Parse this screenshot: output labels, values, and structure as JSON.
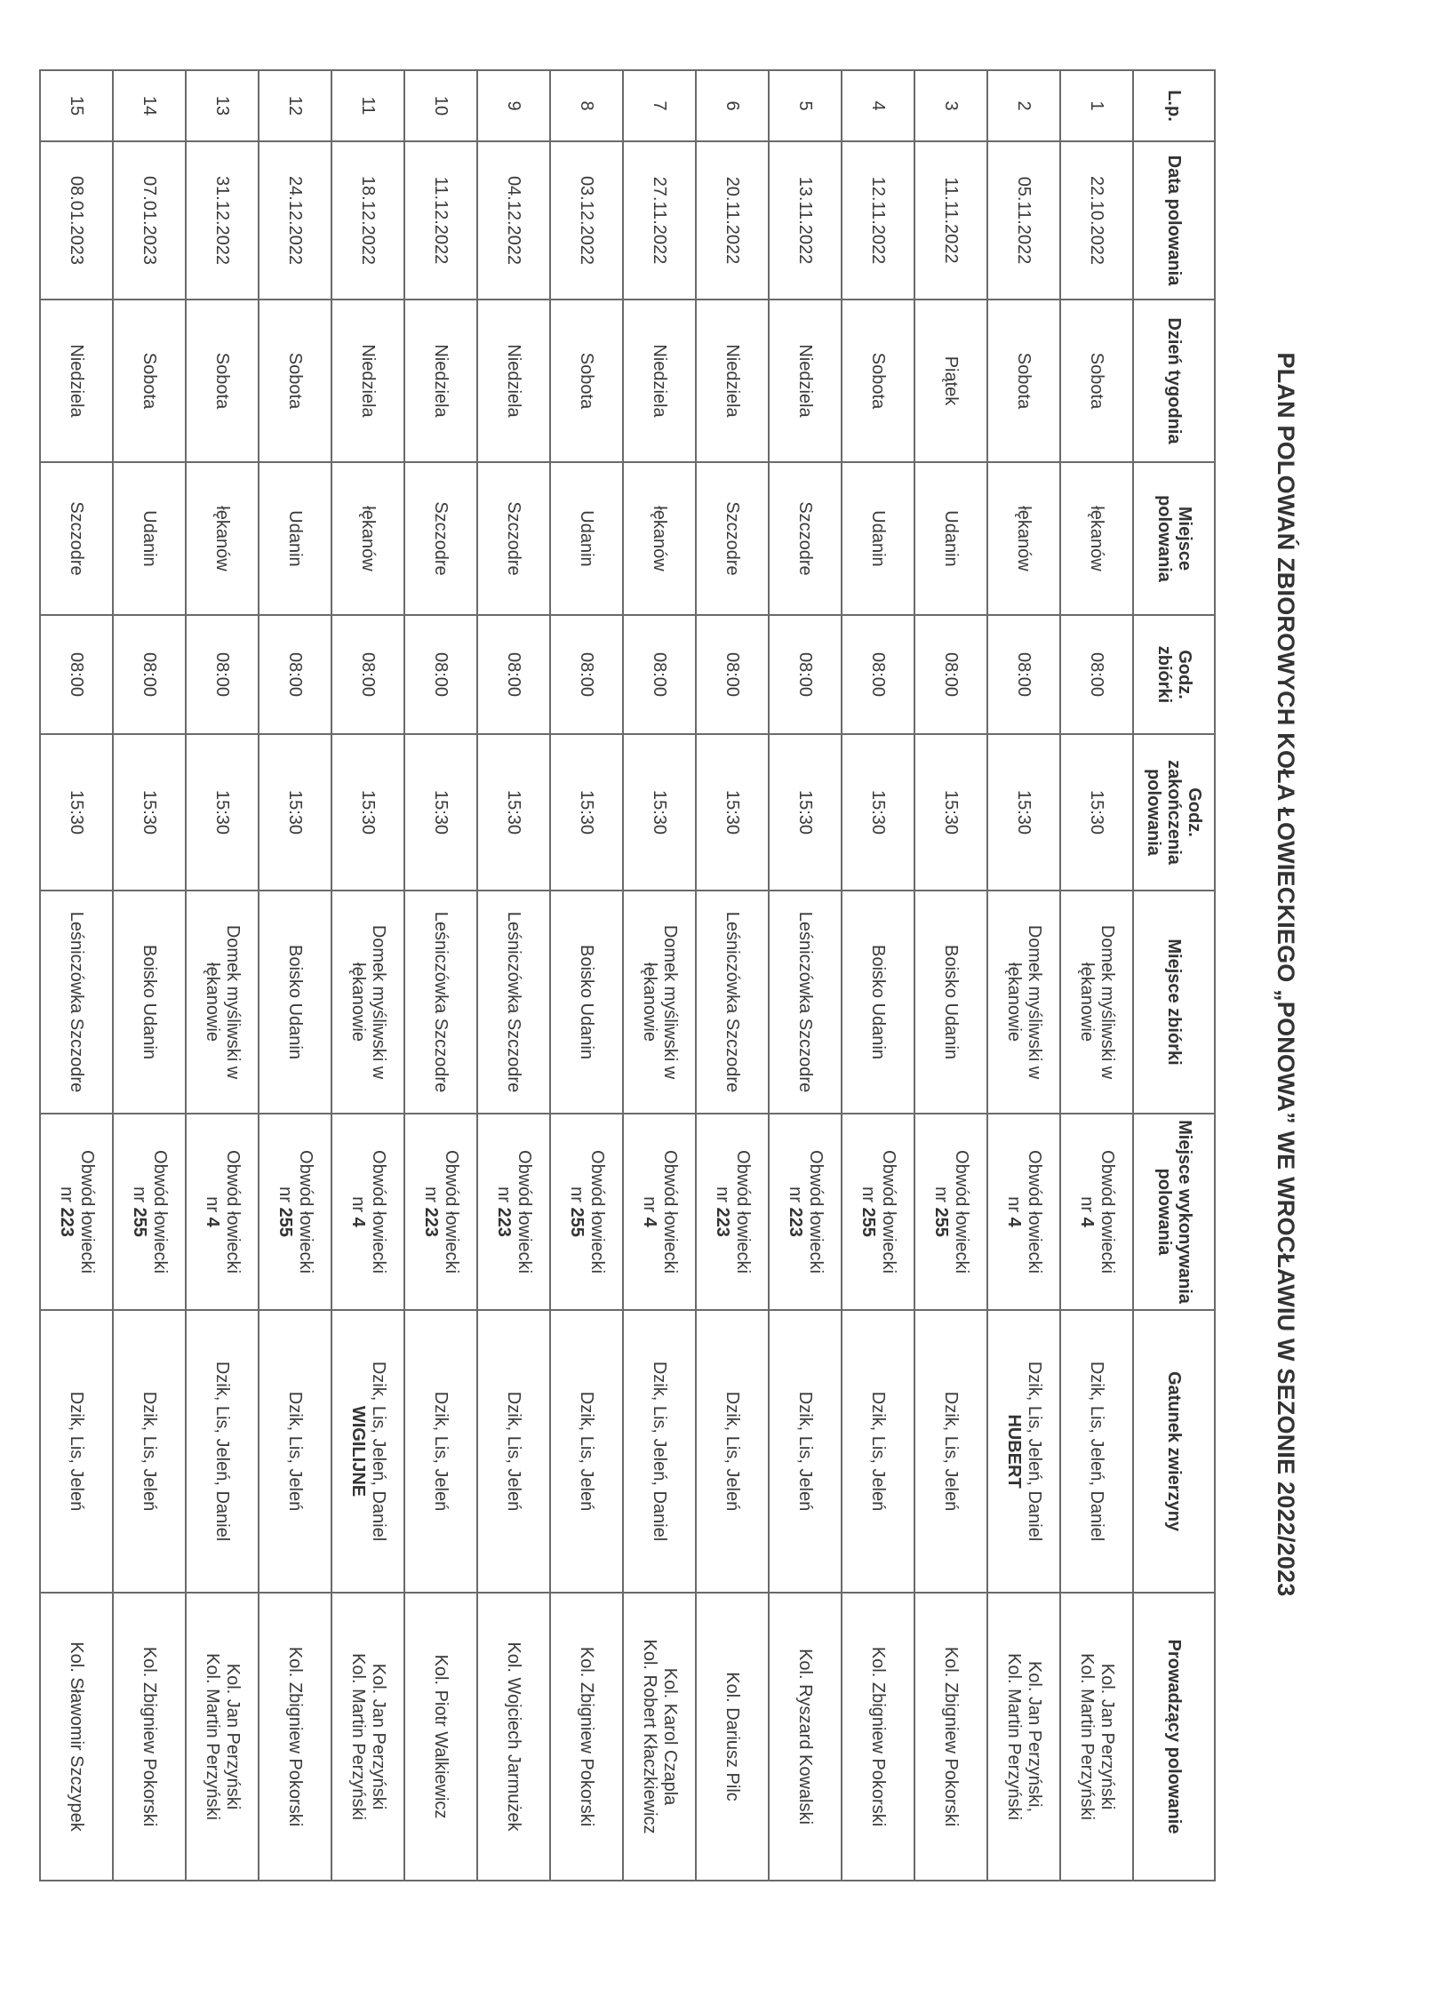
{
  "title": "PLAN POLOWAŃ ZBIOROWYCH KOŁA ŁOWIECKIEGO „PONOWA” WE WROCŁAWIU W SEZONIE 2022/2023",
  "headers": [
    "L.p.",
    "Data polowania",
    "Dzień tygodnia",
    "Miejsce polowania",
    "Godz. zbiórki",
    "Godz. zakończenia polowania",
    "Miejsce zbiórki",
    "Miejsce wykonywania polowania",
    "Gatunek zwierzyny",
    "Prowadzący polowanie"
  ],
  "rows": [
    {
      "lp": "1",
      "date": "22.10.2022",
      "day": "Sobota",
      "place": "łękanów",
      "start": "08:00",
      "end": "15:30",
      "meet": "Domek myśliwski w łękanowie",
      "area": "Obwód łowiecki",
      "nr_prefix": "nr",
      "nr": "4",
      "species": "Dzik, Lis, Jeleń, Daniel",
      "note": "",
      "leaders": [
        "Kol. Jan Perzyński",
        "Kol. Martin Perzyński"
      ]
    },
    {
      "lp": "2",
      "date": "05.11.2022",
      "day": "Sobota",
      "place": "łękanów",
      "start": "08:00",
      "end": "15:30",
      "meet": "Domek myśliwski w łękanowie",
      "area": "Obwód łowiecki",
      "nr_prefix": "nr",
      "nr": "4",
      "species": "Dzik, Lis, Jeleń, Daniel",
      "note": "HUBERT",
      "leaders": [
        "Kol. Jan Perzyński,",
        "Kol. Martin Perzyński"
      ]
    },
    {
      "lp": "3",
      "date": "11.11.2022",
      "day": "Piątek",
      "place": "Udanin",
      "start": "08:00",
      "end": "15:30",
      "meet": "Boisko Udanin",
      "area": "Obwód łowiecki",
      "nr_prefix": "nr",
      "nr": "255",
      "species": "Dzik, Lis, Jeleń",
      "note": "",
      "leaders": [
        "Kol. Zbigniew Pokorski"
      ]
    },
    {
      "lp": "4",
      "date": "12.11.2022",
      "day": "Sobota",
      "place": "Udanin",
      "start": "08:00",
      "end": "15:30",
      "meet": "Boisko Udanin",
      "area": "Obwód łowiecki",
      "nr_prefix": "nr",
      "nr": "255",
      "species": "Dzik, Lis, Jeleń",
      "note": "",
      "leaders": [
        "Kol. Zbigniew Pokorski"
      ]
    },
    {
      "lp": "5",
      "date": "13.11.2022",
      "day": "Niedziela",
      "place": "Szczodre",
      "start": "08:00",
      "end": "15:30",
      "meet": "Leśniczówka Szczodre",
      "area": "Obwód łowiecki",
      "nr_prefix": "nr",
      "nr": "223",
      "species": "Dzik, Lis, Jeleń",
      "note": "",
      "leaders": [
        "Kol. Ryszard Kowalski"
      ]
    },
    {
      "lp": "6",
      "date": "20.11.2022",
      "day": "Niedziela",
      "place": "Szczodre",
      "start": "08:00",
      "end": "15:30",
      "meet": "Leśniczówka Szczodre",
      "area": "Obwód łowiecki",
      "nr_prefix": "nr",
      "nr": "223",
      "species": "Dzik, Lis, Jeleń",
      "note": "",
      "leaders": [
        "Kol. Dariusz Pilc"
      ]
    },
    {
      "lp": "7",
      "date": "27.11.2022",
      "day": "Niedziela",
      "place": "łękanów",
      "start": "08:00",
      "end": "15:30",
      "meet": "Domek myśliwski w łękanowie",
      "area": "Obwód łowiecki",
      "nr_prefix": "nr",
      "nr": "4",
      "species": "Dzik, Lis, Jeleń, Daniel",
      "note": "",
      "leaders": [
        "Kol. Karol Czapla",
        "Kol. Robert Kłaczkiewicz"
      ]
    },
    {
      "lp": "8",
      "date": "03.12.2022",
      "day": "Sobota",
      "place": "Udanin",
      "start": "08:00",
      "end": "15:30",
      "meet": "Boisko Udanin",
      "area": "Obwód łowiecki",
      "nr_prefix": "nr",
      "nr": "255",
      "species": "Dzik, Lis, Jeleń",
      "note": "",
      "leaders": [
        "Kol. Zbigniew Pokorski"
      ]
    },
    {
      "lp": "9",
      "date": "04.12.2022",
      "day": "Niedziela",
      "place": "Szczodre",
      "start": "08:00",
      "end": "15:30",
      "meet": "Leśniczówka Szczodre",
      "area": "Obwód łowiecki",
      "nr_prefix": "nr",
      "nr": "223",
      "species": "Dzik, Lis, Jeleń",
      "note": "",
      "leaders": [
        "Kol. Wojciech Jarmużek"
      ]
    },
    {
      "lp": "10",
      "date": "11.12.2022",
      "day": "Niedziela",
      "place": "Szczodre",
      "start": "08:00",
      "end": "15:30",
      "meet": "Leśniczówka Szczodre",
      "area": "Obwód łowiecki",
      "nr_prefix": "nr",
      "nr": "223",
      "species": "Dzik, Lis, Jeleń",
      "note": "",
      "leaders": [
        "Kol. Piotr Walkiewicz"
      ]
    },
    {
      "lp": "11",
      "date": "18.12.2022",
      "day": "Niedziela",
      "place": "łękanów",
      "start": "08:00",
      "end": "15:30",
      "meet": "Domek myśliwski w łękanowie",
      "area": "Obwód łowiecki",
      "nr_prefix": "nr",
      "nr": "4",
      "species": "Dzik, Lis, Jeleń, Daniel",
      "note": "WIGILIJNE",
      "leaders": [
        "Kol. Jan Perzyński",
        "Kol. Martin Perzyński"
      ]
    },
    {
      "lp": "12",
      "date": "24.12.2022",
      "day": "Sobota",
      "place": "Udanin",
      "start": "08:00",
      "end": "15:30",
      "meet": "Boisko Udanin",
      "area": "Obwód łowiecki",
      "nr_prefix": "nr",
      "nr": "255",
      "species": "Dzik, Lis, Jeleń",
      "note": "",
      "leaders": [
        "Kol. Zbigniew Pokorski"
      ]
    },
    {
      "lp": "13",
      "date": "31.12.2022",
      "day": "Sobota",
      "place": "łękanów",
      "start": "08:00",
      "end": "15:30",
      "meet": "Domek myśliwski w łękanowie",
      "area": "Obwód łowiecki",
      "nr_prefix": "nr",
      "nr": "4",
      "species": "Dzik, Lis, Jeleń, Daniel",
      "note": "",
      "leaders": [
        "Kol. Jan Perzyński",
        "Kol. Martin Perzyński"
      ]
    },
    {
      "lp": "14",
      "date": "07.01.2023",
      "day": "Sobota",
      "place": "Udanin",
      "start": "08:00",
      "end": "15:30",
      "meet": "Boisko Udanin",
      "area": "Obwód łowiecki",
      "nr_prefix": "nr",
      "nr": "255",
      "species": "Dzik, Lis, Jeleń",
      "note": "",
      "leaders": [
        "Kol. Zbigniew Pokorski"
      ]
    },
    {
      "lp": "15",
      "date": "08.01.2023",
      "day": "Niedziela",
      "place": "Szczodre",
      "start": "08:00",
      "end": "15:30",
      "meet": "Leśniczówka Szczodre",
      "area": "Obwód łowiecki",
      "nr_prefix": "nr",
      "nr": "223",
      "species": "Dzik, Lis, Jeleń",
      "note": "",
      "leaders": [
        "Kol. Sławomir Szczypek"
      ]
    }
  ]
}
